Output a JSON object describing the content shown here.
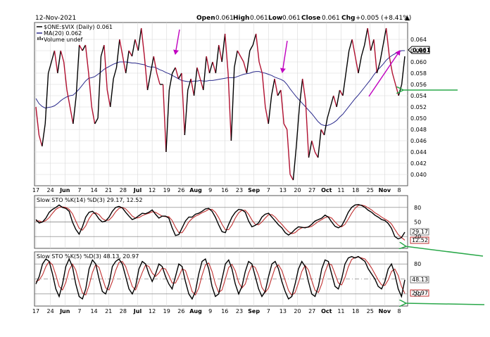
{
  "header": {
    "date": "12-Nov-2021",
    "open_label": "Open",
    "open": "0.061",
    "high_label": "High",
    "high": "0.061",
    "low_label": "Low",
    "low": "0.061",
    "close_label": "Close",
    "close": "0.061",
    "chg_label": "Chg",
    "chg": "+0.005 (+8.41%)",
    "chg_glyph": "▲"
  },
  "colors": {
    "price": "#000000",
    "price_down": "#b01030",
    "ma": "#2a2a8c",
    "k_line": "#000000",
    "d_line": "#c03030",
    "annot_magenta": "#c000c0",
    "annot_green": "#2aa84a",
    "grid": "#d8d8d8"
  },
  "chart_data": [
    {
      "type": "line",
      "title": "$ONE:$VIX (Daily)",
      "legend": [
        {
          "text": "$ONE:$VIX (Daily) 0.061",
          "swatch": "black"
        },
        {
          "text": "MA(20) 0.062",
          "swatch": "blue"
        },
        {
          "text": "Volume undef",
          "swatch": "volume"
        }
      ],
      "ylim": [
        0.038,
        0.067
      ],
      "y_ticks": [
        "0.064",
        "0.062",
        "0.060",
        "0.058",
        "0.056",
        "0.054",
        "0.052",
        "0.050",
        "0.048",
        "0.046",
        "0.044",
        "0.042",
        "0.040"
      ],
      "last_value_label": "0.061",
      "x_ticks": [
        "17",
        "24",
        "Jun",
        "7",
        "14",
        "21",
        "28",
        "Jul",
        "12",
        "19",
        "26",
        "Aug",
        "9",
        "16",
        "23",
        "Sep",
        "7",
        "13",
        "20",
        "27",
        "Oct",
        "11",
        "18",
        "25",
        "Nov",
        "8"
      ],
      "x_ticks_bold": [
        "Jun",
        "Jul",
        "Aug",
        "Sep",
        "Oct",
        "Nov"
      ],
      "series": [
        {
          "name": "$ONE:$VIX (Daily)",
          "values": [
            0.052,
            0.047,
            0.045,
            0.049,
            0.058,
            0.06,
            0.062,
            0.058,
            0.062,
            0.06,
            0.055,
            0.052,
            0.049,
            0.054,
            0.063,
            0.062,
            0.063,
            0.058,
            0.052,
            0.049,
            0.05,
            0.061,
            0.063,
            0.055,
            0.052,
            0.057,
            0.059,
            0.064,
            0.061,
            0.058,
            0.062,
            0.061,
            0.064,
            0.062,
            0.066,
            0.061,
            0.055,
            0.058,
            0.061,
            0.058,
            0.056,
            0.056,
            0.044,
            0.055,
            0.058,
            0.059,
            0.057,
            0.058,
            0.047,
            0.055,
            0.057,
            0.054,
            0.059,
            0.057,
            0.055,
            0.061,
            0.058,
            0.06,
            0.058,
            0.063,
            0.06,
            0.065,
            0.058,
            0.046,
            0.059,
            0.062,
            0.061,
            0.06,
            0.058,
            0.062,
            0.063,
            0.065,
            0.06,
            0.058,
            0.052,
            0.049,
            0.054,
            0.057,
            0.054,
            0.055,
            0.049,
            0.048,
            0.04,
            0.039,
            0.045,
            0.052,
            0.057,
            0.053,
            0.043,
            0.046,
            0.044,
            0.043,
            0.048,
            0.047,
            0.05,
            0.052,
            0.054,
            0.052,
            0.055,
            0.054,
            0.058,
            0.062,
            0.064,
            0.061,
            0.058,
            0.061,
            0.063,
            0.066,
            0.062,
            0.064,
            0.058,
            0.06,
            0.063,
            0.066,
            0.061,
            0.058,
            0.056,
            0.054,
            0.056,
            0.061
          ]
        },
        {
          "name": "MA(20)",
          "values": [
            0.0535,
            0.0526,
            0.0521,
            0.0518,
            0.0519,
            0.052,
            0.0522,
            0.0526,
            0.0531,
            0.0535,
            0.0538,
            0.054,
            0.0541,
            0.0546,
            0.0552,
            0.0559,
            0.0566,
            0.0571,
            0.0572,
            0.0574,
            0.0578,
            0.0582,
            0.0587,
            0.059,
            0.0593,
            0.0596,
            0.0598,
            0.06,
            0.06,
            0.06,
            0.0599,
            0.0598,
            0.0598,
            0.0597,
            0.0596,
            0.0595,
            0.0592,
            0.0591,
            0.0591,
            0.0589,
            0.0586,
            0.0584,
            0.0581,
            0.0579,
            0.0576,
            0.0573,
            0.057,
            0.0567,
            0.0566,
            0.0565,
            0.0565,
            0.0566,
            0.0566,
            0.0567,
            0.0566,
            0.0566,
            0.0567,
            0.0567,
            0.0568,
            0.0569,
            0.057,
            0.0571,
            0.0572,
            0.0572,
            0.0572,
            0.0574,
            0.0576,
            0.0578,
            0.0579,
            0.058,
            0.0582,
            0.0583,
            0.0583,
            0.0581,
            0.058,
            0.0578,
            0.0576,
            0.0573,
            0.0571,
            0.0569,
            0.0566,
            0.056,
            0.0552,
            0.0545,
            0.0538,
            0.0532,
            0.0526,
            0.052,
            0.0514,
            0.0508,
            0.0501,
            0.0494,
            0.0489,
            0.0487,
            0.0487,
            0.0489,
            0.0492,
            0.0496,
            0.0502,
            0.0507,
            0.0514,
            0.0521,
            0.0528,
            0.0535,
            0.0541,
            0.0548,
            0.0555,
            0.0562,
            0.0569,
            0.0577,
            0.0584,
            0.059,
            0.0596,
            0.0603,
            0.0608,
            0.0612,
            0.0615,
            0.0618,
            0.062,
            0.062
          ]
        }
      ]
    },
    {
      "type": "line",
      "title": "Slow STO %K(14) %D(3)",
      "legend_text": "Slow STO %K(14) %D(3) 29.17, 12.52",
      "ylim": [
        0,
        100
      ],
      "y_ticks": [
        "80",
        "50",
        "20"
      ],
      "value_labels": [
        "29.17",
        "12.52"
      ],
      "series": [
        {
          "name": "%K(14)",
          "values": [
            55,
            48,
            50,
            58,
            70,
            76,
            80,
            85,
            80,
            78,
            72,
            50,
            35,
            25,
            40,
            60,
            70,
            72,
            66,
            56,
            50,
            52,
            60,
            72,
            80,
            82,
            79,
            70,
            62,
            55,
            58,
            63,
            68,
            67,
            70,
            75,
            66,
            58,
            62,
            62,
            58,
            38,
            22,
            24,
            38,
            52,
            60,
            60,
            66,
            68,
            72,
            77,
            78,
            72,
            60,
            44,
            30,
            28,
            45,
            60,
            70,
            76,
            75,
            70,
            52,
            40,
            43,
            48,
            60,
            66,
            68,
            60,
            52,
            44,
            38,
            28,
            23,
            28,
            35,
            40,
            39,
            38,
            40,
            45,
            52,
            55,
            58,
            64,
            60,
            50,
            41,
            38,
            42,
            55,
            70,
            80,
            85,
            86,
            84,
            80,
            74,
            70,
            64,
            60,
            55,
            53,
            47,
            37,
            20,
            15,
            18,
            29
          ]
        },
        {
          "name": "%D(3)",
          "values": [
            52,
            52,
            50,
            53,
            59,
            68,
            76,
            80,
            81,
            80,
            76,
            67,
            52,
            37,
            33,
            42,
            57,
            67,
            69,
            65,
            57,
            53,
            54,
            61,
            71,
            78,
            80,
            77,
            70,
            62,
            58,
            59,
            63,
            66,
            68,
            71,
            70,
            66,
            62,
            61,
            61,
            53,
            39,
            28,
            28,
            38,
            50,
            57,
            62,
            65,
            69,
            72,
            76,
            76,
            70,
            59,
            45,
            34,
            34,
            44,
            58,
            69,
            74,
            74,
            66,
            54,
            45,
            44,
            50,
            58,
            65,
            65,
            60,
            52,
            45,
            37,
            30,
            26,
            28,
            34,
            38,
            39,
            39,
            41,
            46,
            51,
            55,
            59,
            61,
            58,
            50,
            43,
            40,
            45,
            56,
            68,
            78,
            84,
            85,
            83,
            79,
            75,
            69,
            65,
            60,
            56,
            52,
            46,
            35,
            24,
            18,
            12.52
          ]
        }
      ]
    },
    {
      "type": "line",
      "title": "Slow STO %K(5) %D(3)",
      "legend_text": "Slow STO %K(5) %D(3) 48.13, 20.97",
      "ylim": [
        0,
        100
      ],
      "y_ticks": [
        "80",
        "20"
      ],
      "value_labels": [
        "48.13",
        "20.97"
      ],
      "series": [
        {
          "name": "%K(5)",
          "values": [
            40,
            55,
            80,
            90,
            85,
            60,
            30,
            15,
            40,
            75,
            90,
            75,
            40,
            15,
            10,
            30,
            70,
            88,
            80,
            50,
            25,
            20,
            40,
            75,
            85,
            90,
            80,
            55,
            30,
            20,
            35,
            70,
            85,
            80,
            60,
            45,
            60,
            80,
            75,
            55,
            40,
            30,
            55,
            80,
            75,
            45,
            20,
            10,
            25,
            60,
            85,
            90,
            70,
            35,
            15,
            20,
            50,
            80,
            88,
            70,
            40,
            20,
            35,
            65,
            85,
            80,
            55,
            30,
            15,
            25,
            55,
            80,
            85,
            70,
            45,
            25,
            10,
            15,
            40,
            70,
            85,
            75,
            45,
            20,
            15,
            35,
            70,
            88,
            85,
            60,
            35,
            30,
            50,
            80,
            92,
            95,
            92,
            95,
            90,
            85,
            70,
            60,
            50,
            35,
            30,
            45,
            70,
            80,
            60,
            30,
            15,
            48.13
          ]
        },
        {
          "name": "%D(3)",
          "values": [
            45,
            48,
            58,
            75,
            85,
            78,
            58,
            35,
            28,
            43,
            68,
            80,
            68,
            43,
            22,
            18,
            37,
            63,
            79,
            73,
            52,
            32,
            28,
            45,
            67,
            83,
            85,
            75,
            55,
            35,
            28,
            45,
            63,
            78,
            75,
            62,
            55,
            62,
            72,
            70,
            57,
            42,
            42,
            55,
            70,
            67,
            47,
            25,
            18,
            32,
            57,
            78,
            82,
            65,
            40,
            23,
            28,
            50,
            73,
            79,
            66,
            43,
            32,
            40,
            62,
            77,
            73,
            57,
            33,
            23,
            32,
            53,
            73,
            78,
            67,
            47,
            27,
            17,
            23,
            42,
            65,
            77,
            68,
            47,
            27,
            23,
            40,
            64,
            81,
            78,
            60,
            42,
            38,
            53,
            74,
            89,
            93,
            94,
            92,
            90,
            82,
            72,
            60,
            48,
            38,
            37,
            48,
            65,
            70,
            57,
            35,
            20.97
          ]
        }
      ]
    }
  ]
}
